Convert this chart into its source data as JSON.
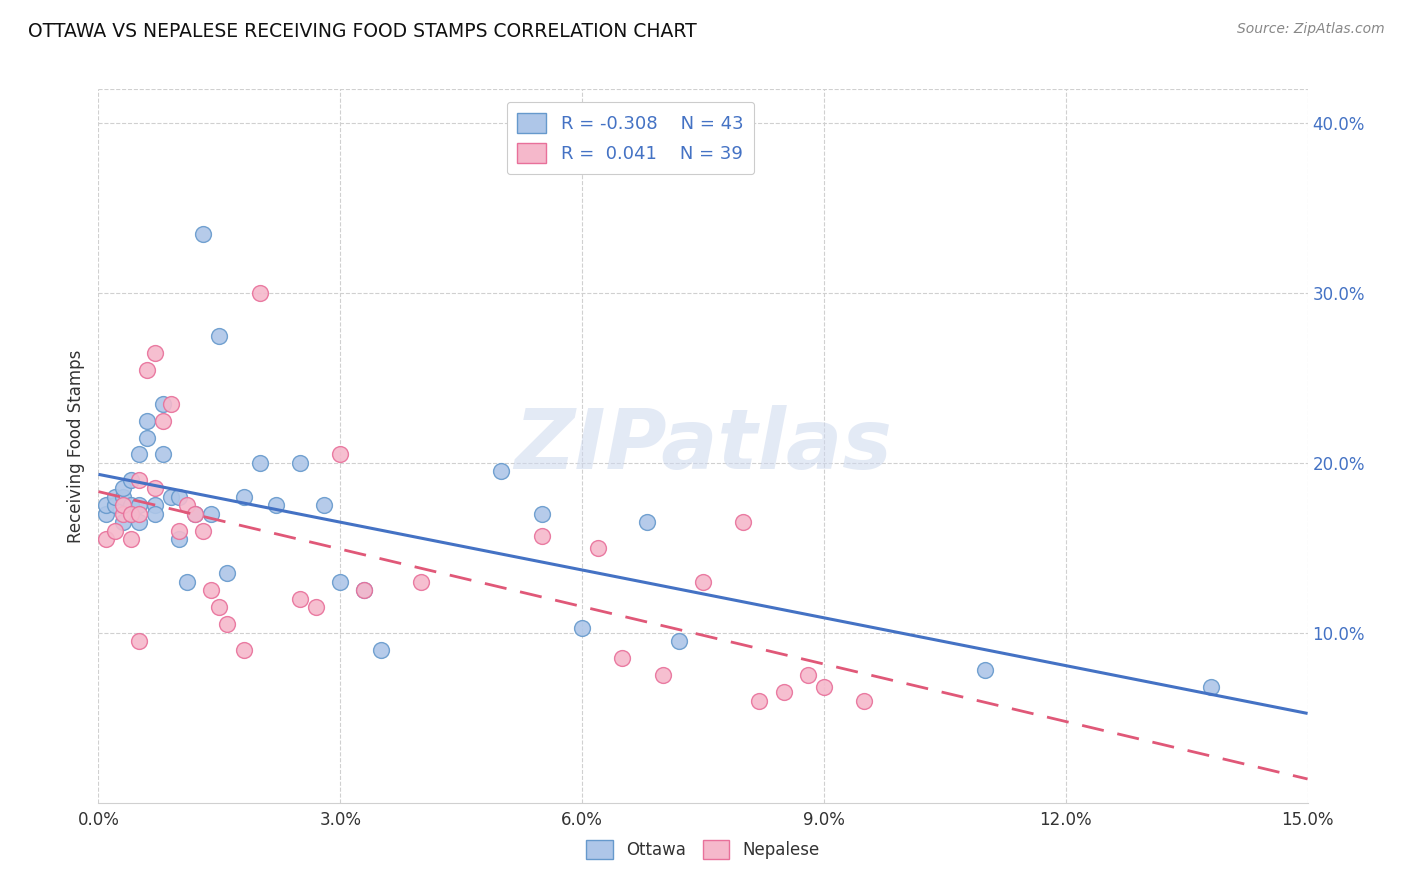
{
  "title": "OTTAWA VS NEPALESE RECEIVING FOOD STAMPS CORRELATION CHART",
  "source": "Source: ZipAtlas.com",
  "ylabel": "Receiving Food Stamps",
  "xlim": [
    0.0,
    0.15
  ],
  "ylim": [
    0.0,
    0.42
  ],
  "xticks": [
    0.0,
    0.03,
    0.06,
    0.09,
    0.12,
    0.15
  ],
  "yticks_right": [
    0.1,
    0.2,
    0.3,
    0.4
  ],
  "grid_color": "#d0d0d0",
  "background_color": "#ffffff",
  "watermark_text": "ZIPatlas",
  "ottawa_color": "#aec6e8",
  "ottawa_edge_color": "#6699cc",
  "nepalese_color": "#f5b8cb",
  "nepalese_edge_color": "#e8709a",
  "ottawa_line_color": "#4472c4",
  "nepalese_line_color": "#e05878",
  "legend_ottawa_R": "-0.308",
  "legend_ottawa_N": "43",
  "legend_nepalese_R": "0.041",
  "legend_nepalese_N": "39",
  "ottawa_x": [
    0.001,
    0.001,
    0.002,
    0.002,
    0.003,
    0.003,
    0.003,
    0.004,
    0.004,
    0.004,
    0.005,
    0.005,
    0.005,
    0.006,
    0.006,
    0.007,
    0.007,
    0.008,
    0.008,
    0.009,
    0.01,
    0.01,
    0.011,
    0.012,
    0.013,
    0.014,
    0.015,
    0.016,
    0.018,
    0.02,
    0.022,
    0.025,
    0.028,
    0.03,
    0.033,
    0.035,
    0.05,
    0.055,
    0.06,
    0.068,
    0.072,
    0.11,
    0.138
  ],
  "ottawa_y": [
    0.17,
    0.175,
    0.175,
    0.18,
    0.165,
    0.18,
    0.185,
    0.17,
    0.175,
    0.19,
    0.165,
    0.175,
    0.205,
    0.215,
    0.225,
    0.175,
    0.17,
    0.235,
    0.205,
    0.18,
    0.18,
    0.155,
    0.13,
    0.17,
    0.335,
    0.17,
    0.275,
    0.135,
    0.18,
    0.2,
    0.175,
    0.2,
    0.175,
    0.13,
    0.125,
    0.09,
    0.195,
    0.17,
    0.103,
    0.165,
    0.095,
    0.078,
    0.068
  ],
  "nepalese_x": [
    0.001,
    0.002,
    0.003,
    0.003,
    0.004,
    0.004,
    0.005,
    0.005,
    0.005,
    0.006,
    0.007,
    0.007,
    0.008,
    0.009,
    0.01,
    0.011,
    0.012,
    0.013,
    0.014,
    0.015,
    0.016,
    0.018,
    0.02,
    0.025,
    0.027,
    0.03,
    0.033,
    0.04,
    0.055,
    0.062,
    0.065,
    0.07,
    0.075,
    0.08,
    0.082,
    0.085,
    0.088,
    0.09,
    0.095
  ],
  "nepalese_y": [
    0.155,
    0.16,
    0.17,
    0.175,
    0.17,
    0.155,
    0.19,
    0.17,
    0.095,
    0.255,
    0.265,
    0.185,
    0.225,
    0.235,
    0.16,
    0.175,
    0.17,
    0.16,
    0.125,
    0.115,
    0.105,
    0.09,
    0.3,
    0.12,
    0.115,
    0.205,
    0.125,
    0.13,
    0.157,
    0.15,
    0.085,
    0.075,
    0.13,
    0.165,
    0.06,
    0.065,
    0.075,
    0.068,
    0.06
  ]
}
